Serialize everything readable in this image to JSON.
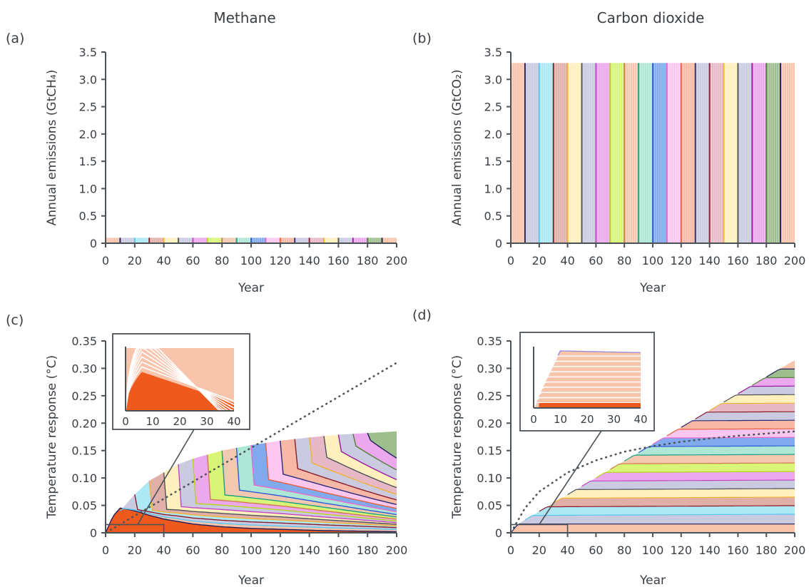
{
  "figure": {
    "columns": [
      {
        "title": "Methane"
      },
      {
        "title": "Carbon dioxide"
      }
    ]
  },
  "palette": [
    "#f9c4ac",
    "#cacbe0",
    "#ace9f4",
    "#e0b0a8",
    "#fff0bd",
    "#cacbe0",
    "#eca8ec",
    "#d8f577",
    "#f2c9b0",
    "#aee7d5",
    "#80a9ee",
    "#fbc7ef",
    "#f7b9a6",
    "#cacbe0",
    "#e7b8c5",
    "#fff0bd",
    "#cacbe0",
    "#eca8ec",
    "#9ebe8e"
  ],
  "separators": [
    "#1f1f5a",
    "#57c7ef",
    "#8a1c2a",
    "#f2b233",
    "#4b5258",
    "#c445c4",
    "#b5d61d",
    "#d07a4e",
    "#1e9e85",
    "#2a5bd6",
    "#e86bd0",
    "#e8603d",
    "#2a2a7a",
    "#8a1c2a",
    "#f2b233",
    "#4b5258",
    "#9c1aa0",
    "#56803f"
  ],
  "chart_data": [
    {
      "panel": "(a)",
      "type": "bar",
      "title": "",
      "xlabel": "Year",
      "ylabel": "Annual emissions (GtCH₄)",
      "xlim": [
        0,
        200
      ],
      "ylim": [
        0,
        3.5
      ],
      "xticks": [
        "0",
        "20",
        "40",
        "60",
        "80",
        "100",
        "120",
        "140",
        "160",
        "180",
        "200"
      ],
      "yticks": [
        "0",
        "0.5",
        "1.0",
        "1.5",
        "2.0",
        "2.5",
        "3.0",
        "3.5"
      ],
      "pulse_years": [
        0,
        10,
        20,
        30,
        40,
        50,
        60,
        70,
        80,
        90,
        100,
        110,
        120,
        130,
        140,
        150,
        160,
        170,
        180,
        190
      ],
      "value": 0.1,
      "series_count": 20
    },
    {
      "panel": "(b)",
      "type": "bar",
      "title": "",
      "xlabel": "Year",
      "ylabel": "Annual emissions (GtCO₂)",
      "xlim": [
        0,
        200
      ],
      "ylim": [
        0,
        3.5
      ],
      "xticks": [
        "0",
        "20",
        "40",
        "60",
        "80",
        "100",
        "120",
        "140",
        "160",
        "180",
        "200"
      ],
      "yticks": [
        "0",
        "0.5",
        "1.0",
        "1.5",
        "2.0",
        "2.5",
        "3.0",
        "3.5"
      ],
      "pulse_years": [
        0,
        10,
        20,
        30,
        40,
        50,
        60,
        70,
        80,
        90,
        100,
        110,
        120,
        130,
        140,
        150,
        160,
        170,
        180,
        190
      ],
      "value": 3.3,
      "series_count": 20
    },
    {
      "panel": "(c)",
      "type": "area",
      "title": "",
      "xlabel": "Year",
      "ylabel": "Temperature response (°C)",
      "xlim": [
        0,
        200
      ],
      "ylim": [
        0,
        0.35
      ],
      "xticks": [
        "0",
        "20",
        "40",
        "60",
        "80",
        "100",
        "120",
        "140",
        "160",
        "180",
        "200"
      ],
      "yticks": [
        "0",
        "0.05",
        "0.10",
        "0.15",
        "0.20",
        "0.25",
        "0.30",
        "0.35"
      ],
      "stacked_total": {
        "x": [
          0,
          5,
          10,
          15,
          20,
          30,
          40,
          50,
          60,
          80,
          100,
          120,
          140,
          160,
          180,
          200
        ],
        "y": [
          0,
          0.02,
          0.04,
          0.055,
          0.07,
          0.095,
          0.11,
          0.125,
          0.135,
          0.15,
          0.16,
          0.168,
          0.174,
          0.179,
          0.182,
          0.185
        ]
      },
      "first_series": {
        "x": [
          0,
          5,
          10,
          15,
          20,
          30,
          40,
          60,
          80,
          100,
          150,
          200
        ],
        "y": [
          0,
          0.03,
          0.045,
          0.043,
          0.04,
          0.032,
          0.025,
          0.016,
          0.011,
          0.008,
          0.004,
          0.002
        ]
      },
      "dotted_line": {
        "x": [
          0,
          20,
          40,
          60,
          80,
          100,
          120,
          140,
          160,
          180,
          200
        ],
        "y": [
          0,
          0.031,
          0.062,
          0.093,
          0.124,
          0.155,
          0.186,
          0.217,
          0.248,
          0.279,
          0.31
        ]
      },
      "inset": {
        "xlim": [
          0,
          40
        ],
        "xticks": [
          "0",
          "10",
          "20",
          "30",
          "40"
        ],
        "zoom_box": {
          "x": [
            0,
            40
          ],
          "y": [
            0,
            0.015
          ]
        }
      }
    },
    {
      "panel": "(d)",
      "type": "area",
      "title": "",
      "xlabel": "Year",
      "ylabel": "Temperature response (°C)",
      "xlim": [
        0,
        200
      ],
      "ylim": [
        0,
        0.35
      ],
      "xticks": [
        "0",
        "20",
        "40",
        "60",
        "80",
        "100",
        "120",
        "140",
        "160",
        "180",
        "200"
      ],
      "yticks": [
        "0",
        "0.05",
        "0.10",
        "0.15",
        "0.20",
        "0.25",
        "0.30",
        "0.35"
      ],
      "stacked_total": {
        "x": [
          0,
          5,
          200
        ],
        "y": [
          0,
          0.016,
          0.315
        ]
      },
      "first_series": {
        "x": [
          0,
          5,
          200
        ],
        "y": [
          0,
          0.016,
          0.016
        ]
      },
      "dotted_line": {
        "x": [
          0,
          10,
          20,
          40,
          60,
          80,
          100,
          120,
          140,
          160,
          180,
          200
        ],
        "y": [
          0,
          0.045,
          0.075,
          0.11,
          0.132,
          0.148,
          0.158,
          0.166,
          0.172,
          0.177,
          0.181,
          0.185
        ]
      },
      "inset": {
        "xlim": [
          0,
          40
        ],
        "xticks": [
          "0",
          "10",
          "20",
          "30",
          "40"
        ],
        "zoom_box": {
          "x": [
            0,
            40
          ],
          "y": [
            0,
            0.015
          ]
        }
      }
    }
  ]
}
